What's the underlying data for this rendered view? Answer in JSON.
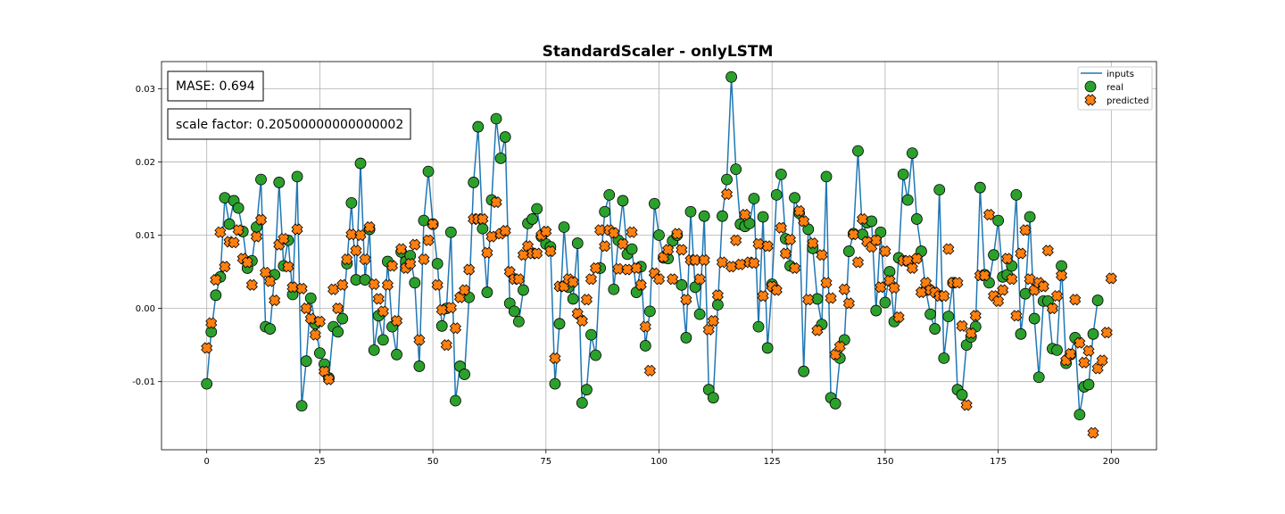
{
  "chart_data": {
    "type": "line",
    "title": "StandardScaler - onlyLSTM",
    "xlabel": "",
    "ylabel": "",
    "xlim": [
      -10,
      210
    ],
    "ylim": [
      -0.0193,
      0.0337
    ],
    "x_ticks": [
      0,
      25,
      50,
      75,
      100,
      125,
      150,
      175,
      200
    ],
    "x_tick_labels": [
      "0",
      "25",
      "50",
      "75",
      "100",
      "125",
      "150",
      "175",
      "200"
    ],
    "y_ticks": [
      -0.01,
      0.0,
      0.01,
      0.02,
      0.03
    ],
    "y_tick_labels": [
      "-0.01",
      "0.00",
      "0.01",
      "0.02",
      "0.03"
    ],
    "grid": true,
    "legend_position": "top-right",
    "annotations": [
      "MASE: 0.694",
      "scale factor: 0.20500000000000002"
    ],
    "colors": {
      "inputs": "#1f77b4",
      "real": "#2ca02c",
      "predicted": "#ff7f0e"
    },
    "series": [
      {
        "name": "inputs",
        "kind": "line",
        "x_start": 0,
        "values": [
          -0.0103,
          -0.0032,
          0.0018,
          0.0043,
          0.0151,
          0.0115,
          0.0147,
          0.0137,
          0.0105,
          0.0055,
          0.0065,
          0.0111,
          0.0176,
          -0.0025,
          -0.0028,
          0.0046,
          0.0172,
          0.0058,
          0.0093,
          0.0019,
          0.018,
          -0.0133,
          -0.0072,
          0.0014,
          -0.0021,
          -0.0061,
          -0.0076,
          -0.0095,
          -0.0025,
          -0.0032,
          -0.0014,
          0.0061,
          0.0144,
          0.0039,
          0.0198,
          0.0039,
          0.0108,
          -0.0057,
          -0.001,
          -0.0043,
          0.0064,
          -0.0025,
          -0.0063,
          0.0077,
          0.0064,
          0.0072,
          0.0035,
          -0.0079,
          0.012,
          0.0187,
          0.0115,
          0.0061,
          -0.0024,
          0.0,
          0.0104,
          -0.0126,
          -0.0079,
          -0.009,
          0.0015,
          0.0172,
          0.0248,
          0.0109,
          0.0022,
          0.0148,
          0.0259,
          0.0205,
          0.0234,
          0.0007,
          -0.0004,
          -0.0018,
          0.0025,
          0.0116,
          0.0122,
          0.0136,
          0.0098,
          0.0088,
          0.0084,
          -0.0103,
          -0.0021,
          0.0111,
          0.0029,
          0.0013,
          0.0089,
          -0.0129,
          -0.0111,
          -0.0036,
          -0.0064,
          0.0055,
          0.0132,
          0.0155,
          0.0026,
          0.0093,
          0.0147,
          0.0074,
          0.0081,
          0.0022,
          0.0057,
          -0.0051,
          -0.0004,
          0.0143,
          0.01,
          0.0069,
          0.0068,
          0.0092,
          0.01,
          0.0032,
          -0.004,
          0.0132,
          0.0029,
          -0.0008,
          0.0126,
          -0.0111,
          -0.0122,
          0.0005,
          0.0126,
          0.0176,
          0.0316,
          0.019,
          0.0115,
          0.0112,
          0.0116,
          0.015,
          -0.0025,
          0.0125,
          -0.0054,
          0.0033,
          0.0155,
          0.0183,
          0.0095,
          0.0058,
          0.0151,
          0.013,
          -0.0086,
          0.0108,
          0.0082,
          0.0013,
          -0.0022,
          0.018,
          -0.0122,
          -0.013,
          -0.0068,
          -0.0043,
          0.0078,
          0.0102,
          0.0215,
          0.0101,
          0.0117,
          0.0119,
          -0.0003,
          0.0104,
          0.0008,
          0.005,
          -0.0018,
          0.0069,
          0.0183,
          0.0148,
          0.0212,
          0.0122,
          0.0078,
          0.0025,
          -0.0008,
          -0.0028,
          0.0162,
          -0.0068,
          -0.0011,
          0.0035,
          -0.0111,
          -0.0118,
          -0.005,
          -0.0039,
          -0.0025,
          0.0165,
          0.0046,
          0.0035,
          0.0073,
          0.012,
          0.0043,
          0.0046,
          0.0058,
          0.0155,
          -0.0035,
          0.002,
          0.0125,
          -0.0014,
          -0.0094,
          0.001,
          0.001,
          -0.0055,
          -0.0057,
          0.0058,
          -0.0075,
          -0.0063,
          -0.004,
          -0.0145,
          -0.0107,
          -0.0104,
          -0.0035,
          0.0011
        ]
      },
      {
        "name": "real",
        "kind": "scatter",
        "marker": "circle",
        "x_start": 0,
        "values": [
          -0.0103,
          -0.0032,
          0.0018,
          0.0043,
          0.0151,
          0.0115,
          0.0147,
          0.0137,
          0.0105,
          0.0055,
          0.0065,
          0.0111,
          0.0176,
          -0.0025,
          -0.0028,
          0.0046,
          0.0172,
          0.0058,
          0.0093,
          0.0019,
          0.018,
          -0.0133,
          -0.0072,
          0.0014,
          -0.0021,
          -0.0061,
          -0.0076,
          -0.0095,
          -0.0025,
          -0.0032,
          -0.0014,
          0.0061,
          0.0144,
          0.0039,
          0.0198,
          0.0039,
          0.0108,
          -0.0057,
          -0.001,
          -0.0043,
          0.0064,
          -0.0025,
          -0.0063,
          0.0077,
          0.0064,
          0.0072,
          0.0035,
          -0.0079,
          0.012,
          0.0187,
          0.0115,
          0.0061,
          -0.0024,
          0.0,
          0.0104,
          -0.0126,
          -0.0079,
          -0.009,
          0.0015,
          0.0172,
          0.0248,
          0.0109,
          0.0022,
          0.0148,
          0.0259,
          0.0205,
          0.0234,
          0.0007,
          -0.0004,
          -0.0018,
          0.0025,
          0.0116,
          0.0122,
          0.0136,
          0.0098,
          0.0088,
          0.0084,
          -0.0103,
          -0.0021,
          0.0111,
          0.0029,
          0.0013,
          0.0089,
          -0.0129,
          -0.0111,
          -0.0036,
          -0.0064,
          0.0055,
          0.0132,
          0.0155,
          0.0026,
          0.0093,
          0.0147,
          0.0074,
          0.0081,
          0.0022,
          0.0057,
          -0.0051,
          -0.0004,
          0.0143,
          0.01,
          0.0069,
          0.0068,
          0.0092,
          0.01,
          0.0032,
          -0.004,
          0.0132,
          0.0029,
          -0.0008,
          0.0126,
          -0.0111,
          -0.0122,
          0.0005,
          0.0126,
          0.0176,
          0.0316,
          0.019,
          0.0115,
          0.0112,
          0.0116,
          0.015,
          -0.0025,
          0.0125,
          -0.0054,
          0.0033,
          0.0155,
          0.0183,
          0.0095,
          0.0058,
          0.0151,
          0.013,
          -0.0086,
          0.0108,
          0.0082,
          0.0013,
          -0.0022,
          0.018,
          -0.0122,
          -0.013,
          -0.0068,
          -0.0043,
          0.0078,
          0.0102,
          0.0215,
          0.0101,
          0.0117,
          0.0119,
          -0.0003,
          0.0104,
          0.0008,
          0.005,
          -0.0018,
          0.0069,
          0.0183,
          0.0148,
          0.0212,
          0.0122,
          0.0078,
          0.0025,
          -0.0008,
          -0.0028,
          0.0162,
          -0.0068,
          -0.0011,
          0.0035,
          -0.0111,
          -0.0118,
          -0.005,
          -0.0039,
          -0.0025,
          0.0165,
          0.0046,
          0.0035,
          0.0073,
          0.012,
          0.0043,
          0.0046,
          0.0058,
          0.0155,
          -0.0035,
          0.002,
          0.0125,
          -0.0014,
          -0.0094,
          0.001,
          0.001,
          -0.0055,
          -0.0057,
          0.0058,
          -0.0075,
          -0.0063,
          -0.004,
          -0.0145,
          -0.0107,
          -0.0104,
          -0.0035,
          0.0011
        ]
      },
      {
        "name": "predicted",
        "kind": "scatter",
        "marker": "x",
        "x_start": 0,
        "values": [
          -0.0054,
          -0.002,
          0.0039,
          0.0104,
          0.0057,
          0.0091,
          0.009,
          0.0107,
          0.0068,
          0.0063,
          0.0032,
          0.0098,
          0.0121,
          0.0049,
          0.0037,
          0.0011,
          0.0087,
          0.0095,
          0.0057,
          0.0029,
          0.0108,
          0.0027,
          0.0,
          -0.0014,
          -0.0036,
          -0.0018,
          -0.0086,
          -0.0097,
          0.0026,
          0.0,
          0.0032,
          0.0067,
          0.0101,
          0.0079,
          0.01,
          0.0067,
          0.0111,
          0.0033,
          0.0013,
          -0.0004,
          0.0032,
          0.0058,
          -0.0017,
          0.0081,
          0.0055,
          0.0061,
          0.0087,
          -0.0043,
          0.0067,
          0.0093,
          0.0115,
          0.0032,
          -0.0002,
          -0.005,
          0.0001,
          -0.0027,
          0.0015,
          0.0025,
          0.0053,
          0.0122,
          0.0122,
          0.0122,
          0.0076,
          0.0098,
          0.0145,
          0.0102,
          0.0106,
          0.005,
          0.004,
          0.004,
          0.0073,
          0.0085,
          0.0075,
          0.0075,
          0.01,
          0.0105,
          0.0078,
          -0.0068,
          0.003,
          0.003,
          0.004,
          0.0036,
          -0.0007,
          -0.0017,
          0.0012,
          0.004,
          0.0055,
          0.0107,
          0.0085,
          0.0107,
          0.0103,
          0.0054,
          0.0088,
          0.0053,
          0.0104,
          0.0055,
          0.0032,
          -0.0025,
          -0.0085,
          0.0048,
          0.004,
          0.007,
          0.008,
          0.004,
          0.0102,
          0.008,
          0.0012,
          0.0066,
          0.0066,
          0.004,
          0.0066,
          -0.0029,
          -0.0017,
          0.0018,
          0.0063,
          0.0156,
          0.0057,
          0.0093,
          0.006,
          0.0128,
          0.0063,
          0.0062,
          0.0088,
          0.0017,
          0.0085,
          0.003,
          0.0025,
          0.011,
          0.0075,
          0.0094,
          0.0055,
          0.0133,
          0.0119,
          0.0012,
          0.0089,
          -0.003,
          0.0073,
          0.0035,
          0.0014,
          -0.0063,
          -0.0052,
          0.0026,
          0.0007,
          0.0101,
          0.0063,
          0.0122,
          0.0091,
          0.0084,
          0.0093,
          0.0029,
          0.0078,
          0.0038,
          0.0028,
          -0.0012,
          0.0065,
          0.0065,
          0.0055,
          0.0068,
          0.0022,
          0.0035,
          0.0025,
          0.0022,
          0.0017,
          0.0017,
          0.0081,
          0.0035,
          0.0035,
          -0.0024,
          -0.0132,
          -0.0034,
          -0.001,
          0.0045,
          0.0045,
          0.0128,
          0.0017,
          0.001,
          0.0025,
          0.0068,
          0.004,
          -0.001,
          0.0075,
          0.0107,
          0.004,
          0.0025,
          0.0035,
          0.003,
          0.0079,
          0.0,
          0.0017,
          0.0045,
          -0.0071,
          -0.0062,
          0.0012,
          -0.0047,
          -0.0074,
          -0.0058,
          -0.017,
          -0.0082,
          -0.0071,
          -0.0033,
          0.0041
        ]
      }
    ]
  }
}
